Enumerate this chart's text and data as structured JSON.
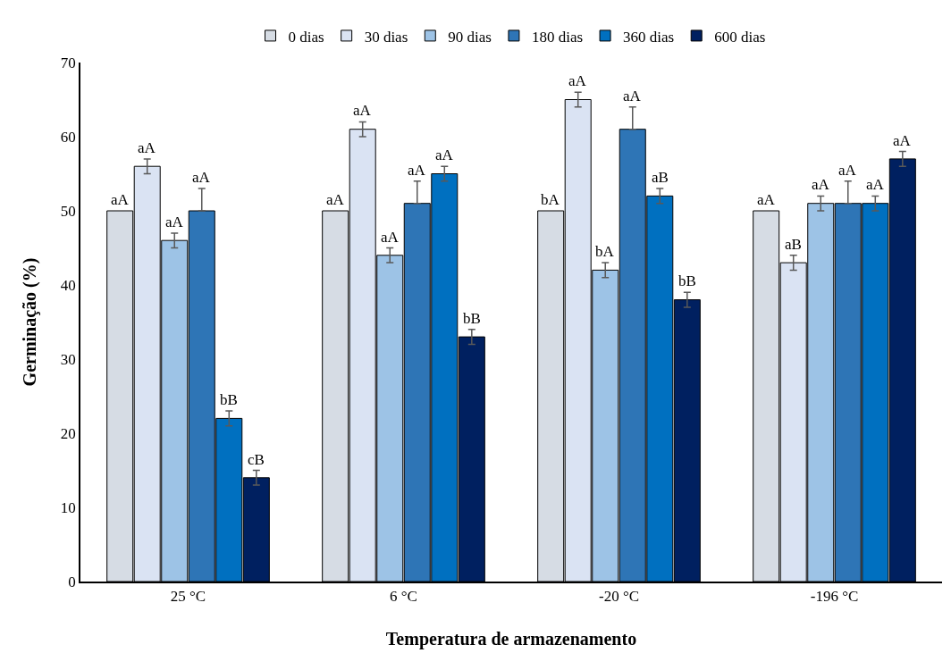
{
  "chart_data": {
    "type": "bar",
    "xlabel": "Temperatura de armazenamento",
    "ylabel": "Germinação (%)",
    "categories": [
      "25 °C",
      "6 °C",
      "-20 °C",
      "-196 °C"
    ],
    "ylim": [
      0,
      70
    ],
    "yticks": [
      0,
      10,
      20,
      30,
      40,
      50,
      60,
      70
    ],
    "grid": false,
    "legend": "top",
    "series": [
      {
        "name": "0 dias",
        "color": "#d6dce4",
        "values": [
          50,
          50,
          50,
          50
        ],
        "errors": [
          null,
          null,
          null,
          null
        ],
        "value_labels": [
          "aA",
          "aA",
          "bA",
          "aA"
        ]
      },
      {
        "name": "30 dias",
        "color": "#dae3f3",
        "values": [
          56,
          61,
          65,
          43
        ],
        "errors": [
          1,
          1,
          1,
          1
        ],
        "value_labels": [
          "aA",
          "aA",
          "aA",
          "aB"
        ]
      },
      {
        "name": "90 dias",
        "color": "#9dc3e6",
        "values": [
          46,
          44,
          42,
          51
        ],
        "errors": [
          1,
          1,
          1,
          1
        ],
        "value_labels": [
          "aA",
          "aA",
          "bA",
          "aA"
        ]
      },
      {
        "name": "180 dias",
        "color": "#2e75b6",
        "values": [
          50,
          51,
          61,
          51
        ],
        "errors": [
          [
            50,
            53
          ],
          [
            51,
            54
          ],
          [
            61,
            64
          ],
          [
            51,
            54
          ]
        ],
        "value_labels": [
          "aA",
          "aA",
          "aA",
          "aA"
        ]
      },
      {
        "name": "360 dias",
        "color": "#0070c0",
        "values": [
          22,
          55,
          52,
          51
        ],
        "errors": [
          1,
          1,
          1,
          1
        ],
        "value_labels": [
          "bB",
          "aA",
          "aB",
          "aA"
        ]
      },
      {
        "name": "600 dias",
        "color": "#002060",
        "values": [
          14,
          33,
          38,
          57
        ],
        "errors": [
          1,
          1,
          1,
          1
        ],
        "value_labels": [
          "cB",
          "bB",
          "bB",
          "aA"
        ]
      }
    ]
  }
}
